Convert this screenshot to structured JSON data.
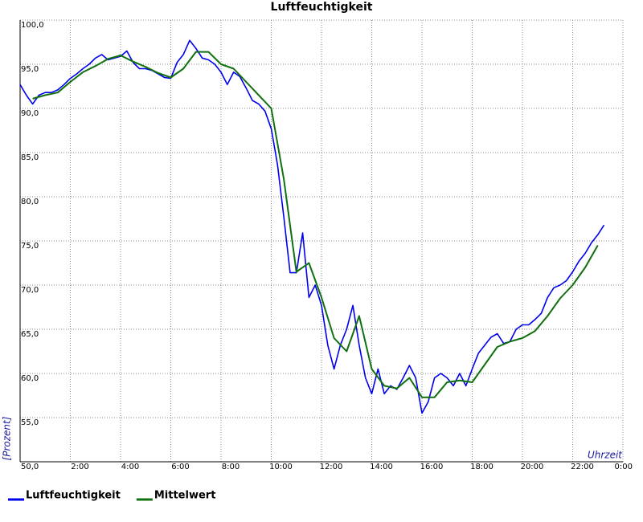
{
  "chart_data": {
    "type": "line",
    "title": "Luftfeuchtigkeit",
    "y_label": "[Prozent]",
    "x_label": "Uhrzeit",
    "xlim": [
      0,
      24
    ],
    "ylim": [
      50,
      100
    ],
    "grid": true,
    "legend": "bottom-left",
    "xticks": [
      {
        "value": 2,
        "label": "2:00"
      },
      {
        "value": 4,
        "label": "4:00"
      },
      {
        "value": 6,
        "label": "6:00"
      },
      {
        "value": 8,
        "label": "8:00"
      },
      {
        "value": 10,
        "label": "10:00"
      },
      {
        "value": 12,
        "label": "12:00"
      },
      {
        "value": 14,
        "label": "14:00"
      },
      {
        "value": 16,
        "label": "16:00"
      },
      {
        "value": 18,
        "label": "18:00"
      },
      {
        "value": 20,
        "label": "20:00"
      },
      {
        "value": 22,
        "label": "22:00"
      },
      {
        "value": 24,
        "label": "0:00"
      }
    ],
    "yticks": [
      {
        "value": 50,
        "label": "50,0"
      },
      {
        "value": 55,
        "label": "55,0"
      },
      {
        "value": 60,
        "label": "60,0"
      },
      {
        "value": 65,
        "label": "65,0"
      },
      {
        "value": 70,
        "label": "70,0"
      },
      {
        "value": 75,
        "label": "75,0"
      },
      {
        "value": 80,
        "label": "80,0"
      },
      {
        "value": 85,
        "label": "85,0"
      },
      {
        "value": 90,
        "label": "90,0"
      },
      {
        "value": 95,
        "label": "95,0"
      },
      {
        "value": 100,
        "label": "100,0"
      }
    ],
    "series": [
      {
        "name": "Luftfeuchtigkeit",
        "color": "#0000ee",
        "x": [
          0,
          0.25,
          0.5,
          0.75,
          1,
          1.25,
          1.5,
          1.75,
          2,
          2.25,
          2.5,
          2.75,
          3,
          3.25,
          3.5,
          3.75,
          4,
          4.25,
          4.5,
          4.75,
          5,
          5.25,
          5.5,
          5.75,
          6,
          6.25,
          6.5,
          6.75,
          7,
          7.25,
          7.5,
          7.75,
          8,
          8.25,
          8.5,
          8.75,
          9,
          9.25,
          9.5,
          9.75,
          10,
          10.25,
          10.5,
          10.75,
          11,
          11.25,
          11.5,
          11.75,
          12,
          12.25,
          12.5,
          12.75,
          13,
          13.25,
          13.5,
          13.75,
          14,
          14.25,
          14.5,
          14.75,
          15,
          15.25,
          15.5,
          15.75,
          16,
          16.25,
          16.5,
          16.75,
          17,
          17.25,
          17.5,
          17.75,
          18,
          18.25,
          18.5,
          18.75,
          19,
          19.25,
          19.5,
          19.75,
          20,
          20.25,
          20.5,
          20.75,
          21,
          21.25,
          21.5,
          21.75,
          22,
          22.25,
          22.5,
          22.75,
          23,
          23.25
        ],
        "values": [
          92.7,
          91.5,
          90.5,
          91.5,
          91.8,
          91.8,
          92.1,
          92.7,
          93.4,
          93.9,
          94.5,
          95,
          95.7,
          96.1,
          95.5,
          95.7,
          95.9,
          96.5,
          95.2,
          94.5,
          94.5,
          94.3,
          93.9,
          93.5,
          93.4,
          95.2,
          96.1,
          97.7,
          96.8,
          95.7,
          95.5,
          95,
          94.1,
          92.7,
          94.1,
          93.6,
          92.3,
          90.9,
          90.5,
          89.7,
          87.7,
          83.6,
          77.7,
          71.4,
          71.4,
          75.9,
          68.6,
          70,
          67.7,
          63.2,
          60.5,
          63.2,
          65,
          67.7,
          63.2,
          59.5,
          57.7,
          60.5,
          57.7,
          58.6,
          58.2,
          59.5,
          60.9,
          59.5,
          55.5,
          56.8,
          59.5,
          60,
          59.5,
          58.6,
          60,
          58.6,
          60.5,
          62.3,
          63.2,
          64.1,
          64.5,
          63.4,
          63.6,
          65,
          65.5,
          65.5,
          66.1,
          66.8,
          68.6,
          69.7,
          70,
          70.5,
          71.5,
          72.7,
          73.6,
          74.8,
          75.7,
          76.8
        ]
      },
      {
        "name": "Mittelwert",
        "color": "#107010",
        "x": [
          0.5,
          1,
          1.5,
          2,
          2.5,
          3,
          3.5,
          4,
          4.5,
          5,
          5.5,
          6,
          6.5,
          7,
          7.5,
          8,
          8.5,
          9,
          9.5,
          10,
          10.5,
          11,
          11.5,
          12,
          12.5,
          13,
          13.5,
          14,
          14.5,
          15,
          15.5,
          16,
          16.5,
          17,
          17.5,
          18,
          18.5,
          19,
          19.5,
          20,
          20.5,
          21,
          21.5,
          22,
          22.5,
          23
        ],
        "values": [
          91.1,
          91.5,
          91.8,
          93,
          94.1,
          94.8,
          95.6,
          96,
          95.3,
          94.7,
          94,
          93.5,
          94.5,
          96.4,
          96.4,
          95,
          94.5,
          93,
          91.5,
          90,
          82,
          71.5,
          72.5,
          68.6,
          64,
          62.5,
          66.5,
          60.5,
          58.6,
          58.3,
          59.5,
          57.3,
          57.3,
          59,
          59.2,
          59,
          61,
          63,
          63.6,
          64,
          64.8,
          66.5,
          68.5,
          70,
          72,
          74.5
        ]
      }
    ]
  }
}
